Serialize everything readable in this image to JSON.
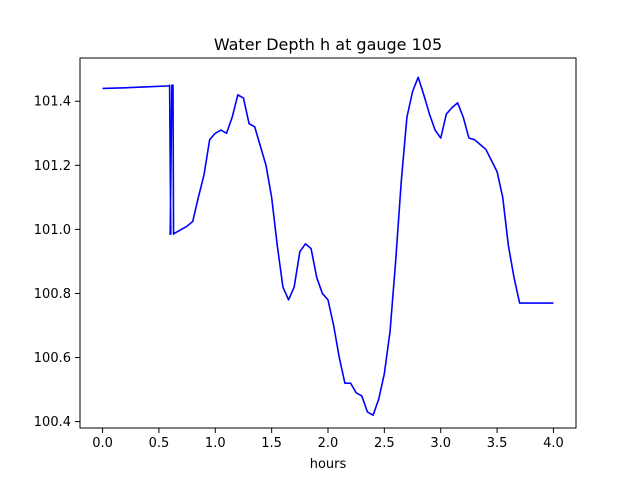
{
  "chart_data": {
    "type": "line",
    "title": "Water Depth h at gauge 105",
    "xlabel": "hours",
    "ylabel": "",
    "xlim": [
      -0.2,
      4.2
    ],
    "ylim": [
      100.38,
      101.535
    ],
    "x_ticks": [
      "0.0",
      "0.5",
      "1.0",
      "1.5",
      "2.0",
      "2.5",
      "3.0",
      "3.5",
      "4.0"
    ],
    "y_ticks": [
      "100.4",
      "100.6",
      "100.8",
      "101.0",
      "101.2",
      "101.4"
    ],
    "grid": false,
    "series": [
      {
        "color": "#0000ff",
        "x": [
          0.0,
          0.2,
          0.4,
          0.59,
          0.595,
          0.605,
          0.6,
          0.615,
          0.625,
          0.63,
          0.635,
          0.64,
          0.65,
          0.7,
          0.75,
          0.8,
          0.85,
          0.9,
          0.95,
          1.0,
          1.05,
          1.1,
          1.15,
          1.2,
          1.25,
          1.3,
          1.35,
          1.4,
          1.45,
          1.5,
          1.55,
          1.6,
          1.65,
          1.7,
          1.75,
          1.8,
          1.85,
          1.9,
          1.95,
          2.0,
          2.05,
          2.1,
          2.15,
          2.2,
          2.25,
          2.3,
          2.35,
          2.4,
          2.45,
          2.5,
          2.55,
          2.6,
          2.65,
          2.7,
          2.75,
          2.8,
          2.85,
          2.9,
          2.95,
          3.0,
          3.05,
          3.1,
          3.15,
          3.2,
          3.25,
          3.3,
          3.35,
          3.4,
          3.45,
          3.5,
          3.55,
          3.6,
          3.65,
          3.7,
          3.75,
          3.8,
          3.85,
          3.9,
          3.95,
          4.0
        ],
        "y": [
          101.44,
          101.442,
          101.445,
          101.448,
          101.45,
          100.985,
          100.985,
          101.45,
          101.45,
          100.985,
          100.99,
          100.988,
          100.99,
          101.0,
          101.01,
          101.025,
          101.1,
          101.17,
          101.28,
          101.3,
          101.31,
          101.3,
          101.35,
          101.42,
          101.41,
          101.33,
          101.32,
          101.26,
          101.2,
          101.1,
          100.95,
          100.82,
          100.78,
          100.82,
          100.93,
          100.955,
          100.94,
          100.85,
          100.8,
          100.78,
          100.7,
          100.6,
          100.52,
          100.52,
          100.49,
          100.48,
          100.43,
          100.42,
          100.47,
          100.55,
          100.68,
          100.9,
          101.15,
          101.35,
          101.43,
          101.475,
          101.42,
          101.36,
          101.31,
          101.285,
          101.36,
          101.38,
          101.395,
          101.35,
          101.285,
          101.28,
          101.265,
          101.25,
          101.215,
          101.18,
          101.1,
          100.95,
          100.85,
          100.77,
          100.77,
          100.77,
          100.77,
          100.77,
          100.77,
          100.77
        ]
      }
    ]
  }
}
